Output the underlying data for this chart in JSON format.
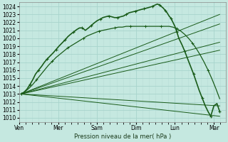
{
  "bg_color": "#c5e8e0",
  "grid_major_color": "#a8d4cc",
  "grid_minor_color": "#b8dcd6",
  "line_color": "#1a5c1a",
  "ylabel_text": "Pression niveau de la mer( hPa )",
  "ylim": [
    1009.5,
    1024.5
  ],
  "yticks": [
    1010,
    1011,
    1012,
    1013,
    1014,
    1015,
    1016,
    1017,
    1018,
    1019,
    1020,
    1021,
    1022,
    1023,
    1024
  ],
  "xtick_labels": [
    "Ven",
    "Mer",
    "Sam",
    "Dim",
    "Lun",
    "Mar"
  ],
  "xtick_positions": [
    0,
    1,
    2,
    3,
    4,
    5
  ],
  "xlim": [
    0,
    5.3
  ],
  "fan_lines": [
    {
      "x": [
        0.05,
        5.15
      ],
      "y": [
        1013.0,
        1023.0
      ],
      "lw": 0.8
    },
    {
      "x": [
        0.05,
        5.15
      ],
      "y": [
        1013.0,
        1021.5
      ],
      "lw": 0.8
    },
    {
      "x": [
        0.05,
        5.15
      ],
      "y": [
        1013.0,
        1019.5
      ],
      "lw": 0.8
    },
    {
      "x": [
        0.05,
        5.15
      ],
      "y": [
        1013.0,
        1018.5
      ],
      "lw": 0.8
    },
    {
      "x": [
        0.05,
        5.15
      ],
      "y": [
        1013.0,
        1011.5
      ],
      "lw": 0.8
    },
    {
      "x": [
        0.05,
        5.15
      ],
      "y": [
        1013.0,
        1010.2
      ],
      "lw": 0.8
    }
  ],
  "main_line_x": [
    0.05,
    0.12,
    0.2,
    0.28,
    0.35,
    0.42,
    0.5,
    0.58,
    0.65,
    0.72,
    0.8,
    0.88,
    0.95,
    1.02,
    1.1,
    1.18,
    1.25,
    1.32,
    1.4,
    1.48,
    1.55,
    1.62,
    1.7,
    1.78,
    1.85,
    1.92,
    2.0,
    2.08,
    2.15,
    2.22,
    2.3,
    2.38,
    2.45,
    2.52,
    2.6,
    2.68,
    2.75,
    2.82,
    2.9,
    2.98,
    3.05,
    3.12,
    3.2,
    3.28,
    3.35,
    3.42,
    3.5,
    3.55,
    3.6,
    3.65,
    3.7,
    3.75,
    3.8,
    3.85,
    3.9,
    3.95,
    4.0,
    4.05,
    4.1,
    4.18,
    4.25,
    4.32,
    4.4,
    4.48,
    4.55,
    4.62,
    4.7,
    4.78,
    4.85,
    4.92,
    5.0,
    5.08,
    5.15
  ],
  "main_line_y": [
    1013.0,
    1013.2,
    1013.6,
    1014.2,
    1014.8,
    1015.5,
    1016.0,
    1016.5,
    1017.0,
    1017.4,
    1017.8,
    1018.2,
    1018.6,
    1019.0,
    1019.4,
    1019.8,
    1020.2,
    1020.5,
    1020.8,
    1021.1,
    1021.3,
    1021.3,
    1021.0,
    1021.3,
    1021.6,
    1021.9,
    1022.2,
    1022.4,
    1022.6,
    1022.7,
    1022.8,
    1022.7,
    1022.6,
    1022.6,
    1022.7,
    1022.8,
    1023.0,
    1023.2,
    1023.3,
    1023.4,
    1023.5,
    1023.6,
    1023.7,
    1023.8,
    1023.9,
    1024.0,
    1024.2,
    1024.3,
    1024.2,
    1024.0,
    1023.8,
    1023.5,
    1023.2,
    1022.8,
    1022.5,
    1022.0,
    1021.5,
    1020.8,
    1020.0,
    1019.2,
    1018.4,
    1017.5,
    1016.5,
    1015.5,
    1014.5,
    1013.5,
    1012.5,
    1011.5,
    1010.8,
    1010.2,
    1011.5,
    1011.8,
    1010.8
  ],
  "second_line_x": [
    0.05,
    0.15,
    0.25,
    0.35,
    0.45,
    0.55,
    0.65,
    0.75,
    0.85,
    0.95,
    1.05,
    1.15,
    1.25,
    1.35,
    1.45,
    1.55,
    1.65,
    1.75,
    1.85,
    1.95,
    2.05,
    2.15,
    2.25,
    2.35,
    2.45,
    2.55,
    2.65,
    2.75,
    2.85,
    2.95,
    3.05,
    3.15,
    3.25,
    3.35,
    3.45,
    3.55,
    3.65,
    3.75,
    3.85,
    3.95,
    4.05,
    4.15,
    4.25,
    4.35,
    4.45,
    4.55,
    4.65,
    4.75,
    4.85,
    4.95,
    5.05,
    5.15
  ],
  "second_line_y": [
    1013.0,
    1013.3,
    1013.7,
    1014.2,
    1014.8,
    1015.4,
    1016.0,
    1016.6,
    1017.1,
    1017.6,
    1018.0,
    1018.4,
    1018.8,
    1019.1,
    1019.4,
    1019.7,
    1020.0,
    1020.3,
    1020.5,
    1020.7,
    1020.9,
    1021.0,
    1021.1,
    1021.2,
    1021.3,
    1021.4,
    1021.4,
    1021.5,
    1021.5,
    1021.5,
    1021.5,
    1021.5,
    1021.5,
    1021.5,
    1021.5,
    1021.5,
    1021.5,
    1021.5,
    1021.5,
    1021.4,
    1021.2,
    1020.9,
    1020.5,
    1020.0,
    1019.4,
    1018.7,
    1017.9,
    1017.0,
    1016.0,
    1014.9,
    1013.7,
    1012.4
  ]
}
